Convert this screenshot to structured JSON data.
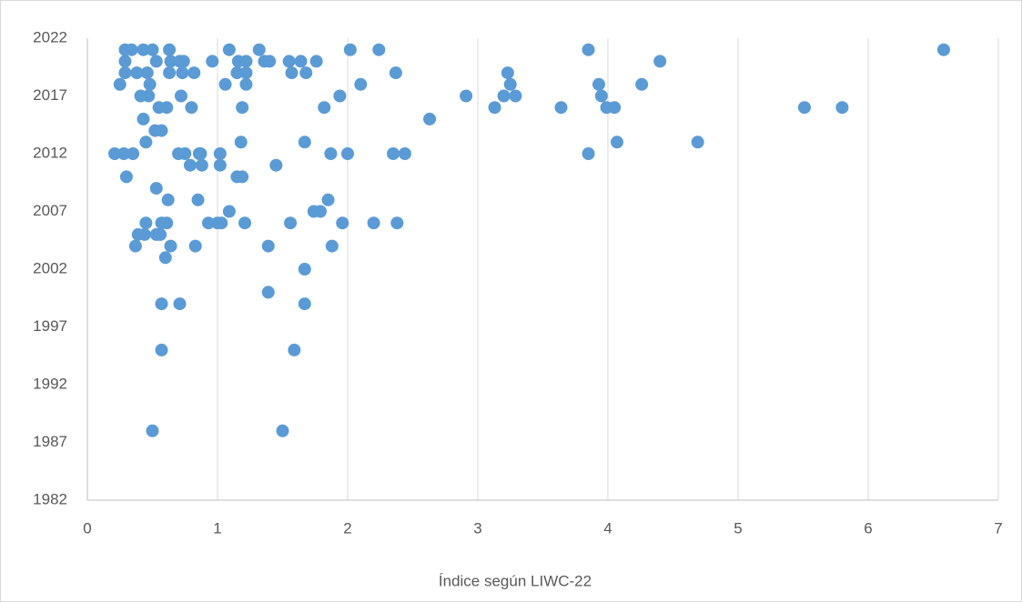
{
  "chart_data": {
    "type": "scatter",
    "x_label": "Índice según LIWC-22",
    "color": "#5b9bd5",
    "x": [
      0.29,
      0.34,
      0.43,
      0.5,
      0.63,
      1.09,
      1.32,
      2.02,
      2.24,
      3.85,
      6.58,
      0.29,
      0.53,
      0.64,
      0.71,
      0.74,
      0.96,
      1.16,
      1.22,
      1.36,
      1.4,
      1.55,
      1.64,
      1.76,
      4.4,
      0.29,
      0.38,
      0.46,
      0.63,
      0.73,
      0.82,
      1.15,
      1.22,
      1.57,
      1.68,
      2.37,
      3.23,
      0.25,
      0.48,
      1.06,
      1.22,
      2.1,
      3.25,
      3.93,
      4.26,
      0.41,
      0.47,
      0.72,
      1.94,
      2.91,
      3.2,
      3.29,
      3.95,
      0.55,
      0.61,
      0.8,
      1.19,
      1.82,
      3.13,
      3.64,
      3.99,
      4.05,
      5.51,
      5.8,
      0.43,
      2.63,
      0.52,
      0.57,
      0.45,
      1.18,
      1.67,
      4.07,
      4.69,
      0.21,
      0.28,
      0.35,
      0.7,
      0.75,
      0.86,
      0.87,
      1.02,
      1.87,
      2.0,
      2.35,
      2.44,
      3.85,
      0.79,
      0.88,
      1.02,
      1.45,
      0.3,
      1.15,
      1.19,
      0.53,
      0.62,
      0.85,
      1.85,
      1.09,
      1.74,
      1.79,
      0.45,
      0.57,
      0.61,
      0.93,
      1.0,
      1.03,
      1.21,
      1.56,
      1.96,
      2.2,
      2.38,
      0.39,
      0.44,
      0.53,
      0.56,
      0.37,
      0.64,
      0.83,
      1.39,
      1.88,
      0.6,
      1.67,
      1.39,
      0.57,
      0.71,
      1.67,
      0.57,
      1.59,
      0.5,
      1.5
    ],
    "values": [
      2021,
      2021,
      2021,
      2021,
      2021,
      2021,
      2021,
      2021,
      2021,
      2021,
      2021,
      2020,
      2020,
      2020,
      2020,
      2020,
      2020,
      2020,
      2020,
      2020,
      2020,
      2020,
      2020,
      2020,
      2020,
      2019,
      2019,
      2019,
      2019,
      2019,
      2019,
      2019,
      2019,
      2019,
      2019,
      2019,
      2019,
      2018,
      2018,
      2018,
      2018,
      2018,
      2018,
      2018,
      2018,
      2017,
      2017,
      2017,
      2017,
      2017,
      2017,
      2017,
      2017,
      2016,
      2016,
      2016,
      2016,
      2016,
      2016,
      2016,
      2016,
      2016,
      2016,
      2016,
      2015,
      2015,
      2014,
      2014,
      2013,
      2013,
      2013,
      2013,
      2013,
      2012,
      2012,
      2012,
      2012,
      2012,
      2012,
      2012,
      2012,
      2012,
      2012,
      2012,
      2012,
      2012,
      2011,
      2011,
      2011,
      2011,
      2010,
      2010,
      2010,
      2009,
      2008,
      2008,
      2008,
      2007,
      2007,
      2007,
      2006,
      2006,
      2006,
      2006,
      2006,
      2006,
      2006,
      2006,
      2006,
      2006,
      2006,
      2005,
      2005,
      2005,
      2005,
      2004,
      2004,
      2004,
      2004,
      2004,
      2003,
      2002,
      2000,
      1999,
      1999,
      1999,
      1995,
      1995,
      1988,
      1988
    ],
    "xlim": [
      0,
      7
    ],
    "xticks": [
      0,
      1,
      2,
      3,
      4,
      5,
      6,
      7
    ],
    "ylim": [
      1982,
      2022
    ],
    "yticks": [
      1982,
      1987,
      1992,
      1997,
      2002,
      2007,
      2012,
      2017,
      2022
    ],
    "grid": "x"
  }
}
